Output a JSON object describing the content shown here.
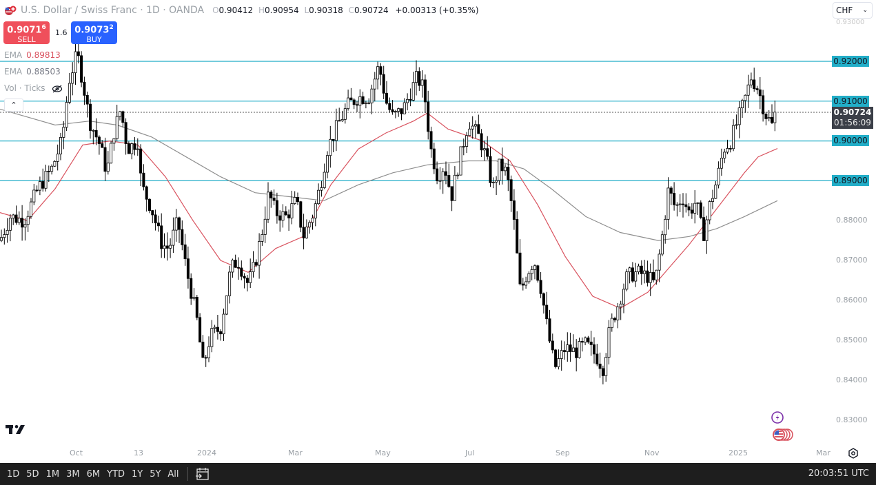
{
  "header": {
    "symbol_title": "U.S. Dollar / Swiss Franc · 1D · OANDA",
    "ohlc": {
      "o_label": "O",
      "o": "0.90412",
      "h_label": "H",
      "h": "0.90954",
      "l_label": "L",
      "l": "0.90318",
      "c_label": "C",
      "c": "0.90724",
      "change": "+0.00313 (+0.35%)"
    }
  },
  "trade": {
    "sell_price_main": "0.9071",
    "sell_price_sup": "6",
    "sell_label": "SELL",
    "spread": "1.6",
    "buy_price_main": "0.9073",
    "buy_price_sup": "2",
    "buy_label": "BUY"
  },
  "indicators": [
    {
      "name": "EMA",
      "value": "0.89813",
      "color": "#d9535f"
    },
    {
      "name": "EMA",
      "value": "0.88503",
      "color": "#787b86"
    },
    {
      "name": "Vol · Ticks",
      "value": ""
    }
  ],
  "currency_select": {
    "value": "CHF"
  },
  "price_axis": {
    "top_partial": "0.93000",
    "labels": [
      "0.88000",
      "0.87000",
      "0.86000",
      "0.85000",
      "0.84000",
      "0.83000"
    ],
    "highlighted": [
      "0.92000",
      "0.91000",
      "0.90000",
      "0.89000"
    ],
    "last_price": "0.90724",
    "countdown": "01:56:09"
  },
  "time_axis": {
    "labels": [
      {
        "text": "Oct",
        "x": 101
      },
      {
        "text": "13",
        "x": 194
      },
      {
        "text": "2024",
        "x": 286
      },
      {
        "text": "Mar",
        "x": 418
      },
      {
        "text": "May",
        "x": 544
      },
      {
        "text": "Jul",
        "x": 675
      },
      {
        "text": "Sep",
        "x": 806
      },
      {
        "text": "Nov",
        "x": 935
      },
      {
        "text": "2025",
        "x": 1057
      },
      {
        "text": "Mar",
        "x": 1184
      }
    ]
  },
  "bottom_bar": {
    "ranges": [
      "1D",
      "5D",
      "1M",
      "3M",
      "6M",
      "YTD",
      "1Y",
      "5Y",
      "All"
    ],
    "clock": "20:03:51 UTC"
  },
  "colors": {
    "up_candle": "#ffffff",
    "down_candle": "#000000",
    "hline": "#22aec8",
    "ema_fast": "#d9535f",
    "ema_slow": "#8f8f8f",
    "sell": "#ef4f5b",
    "buy": "#2962ff"
  },
  "chart_data": {
    "type": "candlestick",
    "title": "U.S. Dollar / Swiss Franc · 1D · OANDA",
    "xlabel": "",
    "ylabel": "CHF",
    "ylim": [
      0.8285,
      0.9345
    ],
    "y_ticks": [
      0.93,
      0.92,
      0.91,
      0.9,
      0.89,
      0.88,
      0.87,
      0.86,
      0.85,
      0.84,
      0.83
    ],
    "horizontal_lines": [
      0.92,
      0.91,
      0.9,
      0.89
    ],
    "last_price": 0.90724,
    "x_ticks": [
      "Oct",
      "13",
      "2024",
      "Mar",
      "May",
      "Jul",
      "Sep",
      "Nov",
      "2025",
      "Mar"
    ],
    "close_path_approx": [
      [
        0,
        0.875
      ],
      [
        15,
        0.881
      ],
      [
        35,
        0.88
      ],
      [
        55,
        0.888
      ],
      [
        75,
        0.893
      ],
      [
        90,
        0.9
      ],
      [
        100,
        0.915
      ],
      [
        112,
        0.922
      ],
      [
        120,
        0.915
      ],
      [
        130,
        0.905
      ],
      [
        145,
        0.899
      ],
      [
        155,
        0.892
      ],
      [
        165,
        0.902
      ],
      [
        175,
        0.908
      ],
      [
        185,
        0.898
      ],
      [
        200,
        0.9
      ],
      [
        205,
        0.889
      ],
      [
        220,
        0.883
      ],
      [
        235,
        0.874
      ],
      [
        245,
        0.873
      ],
      [
        258,
        0.88
      ],
      [
        270,
        0.868
      ],
      [
        285,
        0.856
      ],
      [
        295,
        0.843
      ],
      [
        305,
        0.851
      ],
      [
        320,
        0.853
      ],
      [
        335,
        0.868
      ],
      [
        345,
        0.87
      ],
      [
        360,
        0.864
      ],
      [
        370,
        0.869
      ],
      [
        380,
        0.877
      ],
      [
        390,
        0.887
      ],
      [
        400,
        0.882
      ],
      [
        415,
        0.881
      ],
      [
        430,
        0.885
      ],
      [
        440,
        0.876
      ],
      [
        455,
        0.882
      ],
      [
        465,
        0.889
      ],
      [
        475,
        0.898
      ],
      [
        490,
        0.904
      ],
      [
        505,
        0.909
      ],
      [
        520,
        0.911
      ],
      [
        535,
        0.911
      ],
      [
        550,
        0.919
      ],
      [
        560,
        0.91
      ],
      [
        570,
        0.906
      ],
      [
        585,
        0.908
      ],
      [
        595,
        0.912
      ],
      [
        605,
        0.916
      ],
      [
        615,
        0.913
      ],
      [
        625,
        0.898
      ],
      [
        635,
        0.891
      ],
      [
        645,
        0.894
      ],
      [
        655,
        0.886
      ],
      [
        665,
        0.894
      ],
      [
        680,
        0.905
      ],
      [
        695,
        0.901
      ],
      [
        705,
        0.896
      ],
      [
        715,
        0.888
      ],
      [
        725,
        0.894
      ],
      [
        735,
        0.892
      ],
      [
        745,
        0.881
      ],
      [
        755,
        0.862
      ],
      [
        765,
        0.867
      ],
      [
        775,
        0.87
      ],
      [
        785,
        0.863
      ],
      [
        795,
        0.852
      ],
      [
        805,
        0.843
      ],
      [
        820,
        0.848
      ],
      [
        835,
        0.847
      ],
      [
        850,
        0.849
      ],
      [
        865,
        0.846
      ],
      [
        875,
        0.843
      ],
      [
        885,
        0.853
      ],
      [
        895,
        0.858
      ],
      [
        910,
        0.866
      ],
      [
        925,
        0.867
      ],
      [
        940,
        0.866
      ],
      [
        950,
        0.864
      ],
      [
        960,
        0.875
      ],
      [
        970,
        0.888
      ],
      [
        980,
        0.883
      ],
      [
        990,
        0.886
      ],
      [
        1000,
        0.882
      ],
      [
        1010,
        0.885
      ],
      [
        1020,
        0.876
      ],
      [
        1030,
        0.884
      ],
      [
        1040,
        0.89
      ],
      [
        1050,
        0.898
      ],
      [
        1060,
        0.9
      ],
      [
        1070,
        0.905
      ],
      [
        1080,
        0.91
      ],
      [
        1090,
        0.916
      ],
      [
        1100,
        0.913
      ],
      [
        1110,
        0.907
      ],
      [
        1120,
        0.904
      ],
      [
        1128,
        0.9072
      ]
    ],
    "ema_fast_path_approx": [
      [
        0,
        0.882
      ],
      [
        40,
        0.88
      ],
      [
        80,
        0.888
      ],
      [
        120,
        0.899
      ],
      [
        160,
        0.9
      ],
      [
        200,
        0.899
      ],
      [
        240,
        0.891
      ],
      [
        280,
        0.88
      ],
      [
        320,
        0.87
      ],
      [
        360,
        0.867
      ],
      [
        400,
        0.873
      ],
      [
        440,
        0.876
      ],
      [
        480,
        0.889
      ],
      [
        520,
        0.898
      ],
      [
        560,
        0.902
      ],
      [
        600,
        0.905
      ],
      [
        620,
        0.907
      ],
      [
        650,
        0.903
      ],
      [
        700,
        0.9
      ],
      [
        740,
        0.895
      ],
      [
        780,
        0.884
      ],
      [
        820,
        0.871
      ],
      [
        860,
        0.861
      ],
      [
        900,
        0.858
      ],
      [
        940,
        0.862
      ],
      [
        960,
        0.866
      ],
      [
        1000,
        0.874
      ],
      [
        1040,
        0.883
      ],
      [
        1080,
        0.892
      ],
      [
        1100,
        0.896
      ],
      [
        1128,
        0.8981
      ]
    ],
    "ema_slow_path_approx": [
      [
        0,
        0.908
      ],
      [
        40,
        0.906
      ],
      [
        80,
        0.904
      ],
      [
        130,
        0.905
      ],
      [
        170,
        0.904
      ],
      [
        220,
        0.901
      ],
      [
        270,
        0.896
      ],
      [
        320,
        0.891
      ],
      [
        370,
        0.887
      ],
      [
        420,
        0.886
      ],
      [
        470,
        0.885
      ],
      [
        520,
        0.889
      ],
      [
        570,
        0.892
      ],
      [
        620,
        0.894
      ],
      [
        680,
        0.895
      ],
      [
        720,
        0.895
      ],
      [
        760,
        0.893
      ],
      [
        800,
        0.888
      ],
      [
        850,
        0.881
      ],
      [
        900,
        0.877
      ],
      [
        955,
        0.875
      ],
      [
        1000,
        0.876
      ],
      [
        1040,
        0.878
      ],
      [
        1080,
        0.881
      ],
      [
        1128,
        0.885
      ]
    ]
  }
}
